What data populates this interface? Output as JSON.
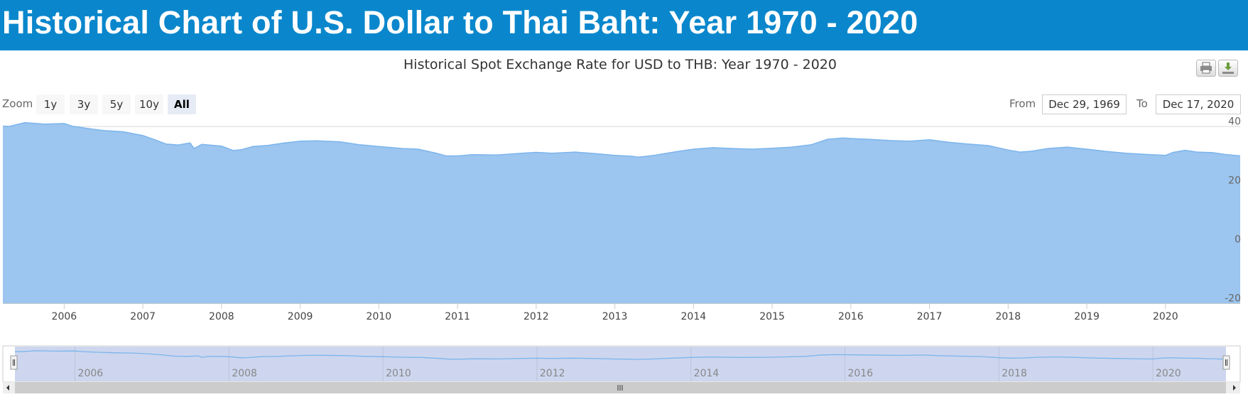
{
  "page": {
    "banner_title": "Historical Chart of U.S. Dollar to Thai Baht: Year 1970 - 2020"
  },
  "colors": {
    "banner": "#0a87cc",
    "area_fill": "#9cc5ef",
    "area_line": "#7cb5ec",
    "navigator_mask": "#cdd6ee"
  },
  "toolbar": {
    "print_icon": "print-icon",
    "download_icon": "download-icon"
  },
  "range_selector": {
    "zoom_label": "Zoom",
    "buttons": [
      "1y",
      "3y",
      "5y",
      "10y",
      "All"
    ],
    "selected": "All",
    "from_label": "From",
    "from_value": "Dec 29, 1969",
    "to_label": "To",
    "to_value": "Dec 17, 2020"
  },
  "chart_data": {
    "type": "area",
    "title": "Historical Spot Exchange Rate for USD to THB: Year 1970 - 2020",
    "xlabel": "",
    "ylabel": "",
    "ylim": [
      -20,
      40
    ],
    "yticks": [
      40,
      20,
      0,
      -20
    ],
    "xlim": [
      2005.22,
      2020.95
    ],
    "xticks": [
      "2006",
      "2007",
      "2008",
      "2009",
      "2010",
      "2011",
      "2012",
      "2013",
      "2014",
      "2015",
      "2016",
      "2017",
      "2018",
      "2019",
      "2020"
    ],
    "grid": true,
    "legend": "none",
    "series": [
      {
        "x": [
          2005.22,
          2005.3,
          2005.5,
          2005.75,
          2006.0,
          2006.1,
          2006.3,
          2006.5,
          2006.75,
          2007.0,
          2007.15,
          2007.3,
          2007.45,
          2007.6,
          2007.65,
          2007.75,
          2008.0,
          2008.15,
          2008.25,
          2008.4,
          2008.6,
          2008.8,
          2009.0,
          2009.2,
          2009.5,
          2009.75,
          2010.0,
          2010.3,
          2010.5,
          2010.75,
          2010.85,
          2011.0,
          2011.2,
          2011.5,
          2011.75,
          2012.0,
          2012.2,
          2012.5,
          2012.75,
          2013.0,
          2013.2,
          2013.3,
          2013.5,
          2013.75,
          2014.0,
          2014.25,
          2014.5,
          2014.75,
          2015.0,
          2015.25,
          2015.5,
          2015.7,
          2015.9,
          2016.0,
          2016.25,
          2016.5,
          2016.75,
          2017.0,
          2017.25,
          2017.5,
          2017.75,
          2018.0,
          2018.15,
          2018.3,
          2018.5,
          2018.75,
          2019.0,
          2019.25,
          2019.5,
          2019.75,
          2020.0,
          2020.1,
          2020.25,
          2020.4,
          2020.6,
          2020.75,
          2020.95
        ],
        "y": [
          40.1,
          40.0,
          41.3,
          40.8,
          41.0,
          40.1,
          39.3,
          38.6,
          38.2,
          36.9,
          35.5,
          34.0,
          33.7,
          34.4,
          32.5,
          33.9,
          33.3,
          31.8,
          32.1,
          33.2,
          33.6,
          34.4,
          35.0,
          35.1,
          34.8,
          33.8,
          33.2,
          32.5,
          32.3,
          30.8,
          30.0,
          30.0,
          30.4,
          30.3,
          30.8,
          31.2,
          30.9,
          31.3,
          30.8,
          30.2,
          29.9,
          29.6,
          30.2,
          31.3,
          32.3,
          32.8,
          32.5,
          32.3,
          32.6,
          33.0,
          33.8,
          35.6,
          36.1,
          35.9,
          35.6,
          35.2,
          35.0,
          35.5,
          34.6,
          34.0,
          33.5,
          32.0,
          31.3,
          31.6,
          32.5,
          33.0,
          32.3,
          31.5,
          30.9,
          30.5,
          30.2,
          31.2,
          31.9,
          31.3,
          31.1,
          30.5,
          30.0
        ]
      }
    ],
    "navigator": {
      "xticks": [
        "2006",
        "2008",
        "2010",
        "2012",
        "2014",
        "2016",
        "2018",
        "2020"
      ]
    }
  }
}
